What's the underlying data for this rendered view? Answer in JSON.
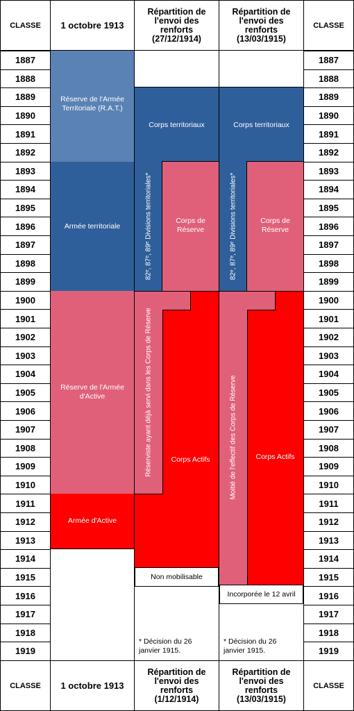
{
  "header_top": {
    "classe_left": "CLASSE",
    "col1": "1 octobre 1913",
    "col2": [
      "Répartition de",
      "l'envoi des",
      "renforts",
      "(27/12/1914)"
    ],
    "col3": [
      "Répartition de",
      "l'envoi des",
      "renforts",
      "(13/03/1915)"
    ],
    "classe_right": "CLASSE"
  },
  "header_bottom": {
    "classe_left": "CLASSE",
    "col1": "1 octobre 1913",
    "col2": [
      "Répartition de",
      "l'envoi des",
      "renforts",
      "(1/12/1914)"
    ],
    "col3": [
      "Répartition de",
      "l'envoi des",
      "renforts",
      "(13/03/1915)"
    ],
    "classe_right": "CLASSE"
  },
  "years": [
    "1887",
    "1888",
    "1889",
    "1890",
    "1891",
    "1892",
    "1893",
    "1894",
    "1895",
    "1896",
    "1897",
    "1898",
    "1899",
    "1900",
    "1901",
    "1902",
    "1903",
    "1904",
    "1905",
    "1906",
    "1907",
    "1908",
    "1909",
    "1910",
    "1911",
    "1912",
    "1913",
    "1914",
    "1915",
    "1916",
    "1917",
    "1918",
    "1919"
  ],
  "colors": {
    "rat": "#5b82b5",
    "territorial": "#2f5f9a",
    "reserve": "#e0607a",
    "active": "#ff0000"
  },
  "col1": {
    "rat": "Réserve de l'Armée Territoriale (R.A.T.)",
    "territorial": "Armée territoriale",
    "reserve": "Réserve de l'Armée d'Active",
    "active": "Armée d'Active"
  },
  "col2": {
    "territoriaux": "Corps territoriaux",
    "divisions": "82ᵉ, 87ᵉ, 89ᵉ Divisions territoriales*",
    "reserve": "Corps de Réserve",
    "reservistes": "Réserviste ayant déjà servi dans les Corps de Réserve",
    "actifs": "Corps Actifs",
    "non_mobilisable": "Non mobilisable",
    "note": "* Décision du 26 janvier 1915."
  },
  "col3": {
    "territoriaux": "Corps territoriaux",
    "divisions": "82ᵉ, 87ᵉ, 89ᵉ Divisions territoriales*",
    "reserve": "Corps de Réserve",
    "moitie": "Moitié de l'effectif des Corps de Réserve",
    "actifs": "Corps Actifs",
    "incorporee": "Incorporée le 12 avril",
    "note": "* Décision du 26 janvier 1915."
  }
}
